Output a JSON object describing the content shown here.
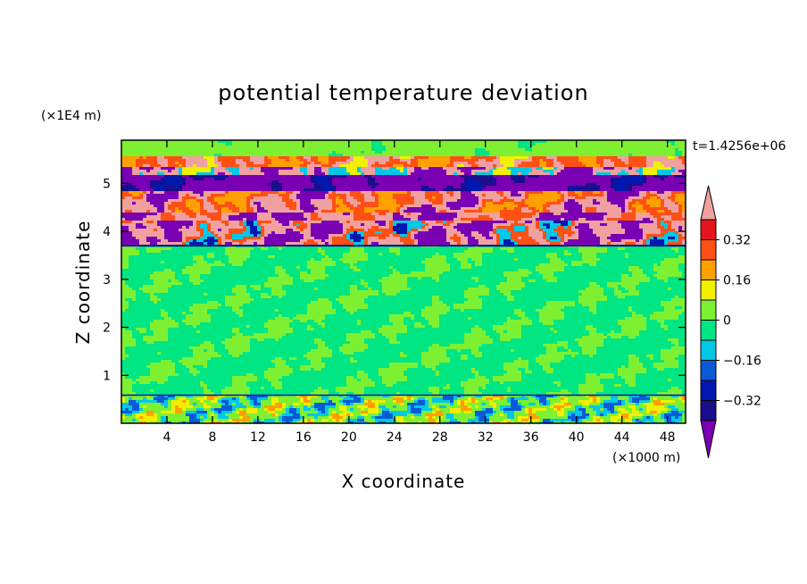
{
  "chart_data": {
    "type": "heatmap",
    "title": "potential temperature deviation",
    "xlabel": "X coordinate",
    "ylabel": "Z coordinate",
    "x_unit": "(×1000 m)",
    "y_unit": "(×1E4 m)",
    "time_label": "t=1.4256e+06",
    "xlim": [
      0,
      49.6
    ],
    "ylim": [
      0,
      5.9
    ],
    "x_ticks": [
      4,
      8,
      12,
      16,
      20,
      24,
      28,
      32,
      36,
      40,
      44,
      48
    ],
    "y_ticks": [
      1,
      2,
      3,
      4,
      5
    ],
    "colorbar": {
      "levels": [
        -0.48,
        -0.4,
        -0.32,
        -0.24,
        -0.16,
        -0.08,
        0,
        0.08,
        0.16,
        0.24,
        0.32,
        0.4,
        0.48
      ],
      "colors": [
        "#7a00b4",
        "#1a0e8c",
        "#0018b0",
        "#0a5ad8",
        "#00c8e6",
        "#00e682",
        "#7ef032",
        "#f0f000",
        "#ffa000",
        "#ff5014",
        "#e6141e",
        "#f0a0a0"
      ],
      "tick_labels": [
        "0.32",
        "0.16",
        "0",
        "−0.16",
        "−0.32"
      ],
      "tick_values": [
        0.32,
        0.16,
        0,
        -0.16,
        -0.32
      ]
    },
    "bands": [
      {
        "z": [
          5.55,
          5.9
        ],
        "dominant": "#7ef032"
      },
      {
        "z": [
          5.15,
          5.55
        ],
        "dominant": "#f0a0a0"
      },
      {
        "z": [
          4.85,
          5.15
        ],
        "dominant": "#7a00b4"
      },
      {
        "z": [
          4.4,
          4.85
        ],
        "dominant": "#f0a0a0"
      },
      {
        "z": [
          3.7,
          4.4
        ],
        "dominant": "#7a00b4"
      },
      {
        "z": [
          0.6,
          3.7
        ],
        "dominant": "#00e682"
      },
      {
        "z": [
          0,
          0.6
        ],
        "dominant": "#7ef032"
      }
    ]
  }
}
